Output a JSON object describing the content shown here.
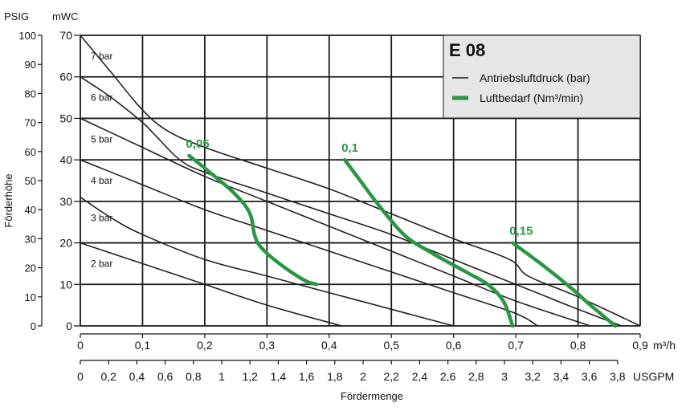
{
  "chart_data": {
    "type": "line",
    "title": "E 08",
    "legend": {
      "placement": "top-right",
      "entries": [
        {
          "label": "Antriebsluftdruck (bar)",
          "color": "#231f20",
          "style": "thin-line"
        },
        {
          "label": "Luftbedarf (Nm³/min)",
          "color": "#2a9646",
          "style": "thick-line"
        }
      ]
    },
    "axes": {
      "mwc": {
        "label": "mWC",
        "ticks": [
          "0",
          "10",
          "20",
          "30",
          "40",
          "50",
          "60",
          "70"
        ],
        "range": [
          0,
          70
        ]
      },
      "psig": {
        "label": "PSIG",
        "ticks": [
          "0",
          "10",
          "20",
          "30",
          "40",
          "50",
          "60",
          "70",
          "80",
          "90",
          "100"
        ],
        "range": [
          0,
          100
        ]
      },
      "ylabel": "Förderhöhe",
      "x_m3h": {
        "label": "m³/h",
        "ticks": [
          "0",
          "0,1",
          "0,2",
          "0,3",
          "0,4",
          "0,5",
          "0,6",
          "0,7",
          "0,8",
          "0,9"
        ],
        "range": [
          0,
          0.9
        ]
      },
      "x_usgpm": {
        "label": "USGPM",
        "ticks": [
          "0",
          "0,2",
          "0,4",
          "0,6",
          "0,8",
          "1",
          "1,2",
          "1,4",
          "1,6",
          "1,8",
          "2",
          "2,2",
          "2,4",
          "2,6",
          "2,8",
          "3",
          "3,2",
          "3,4",
          "3,6",
          "3,8"
        ],
        "range": [
          0,
          3.96
        ]
      },
      "xlabel": "Fördermenge",
      "grid": true
    },
    "pressure_curves": [
      {
        "name": "7 bar",
        "x": [
          0,
          0.05,
          0.1,
          0.14,
          0.2,
          0.3,
          0.4,
          0.5,
          0.6,
          0.69,
          0.72,
          0.8,
          0.9
        ],
        "y": [
          70,
          61,
          52,
          47,
          43,
          38,
          33,
          27,
          21,
          16,
          12,
          7,
          0
        ]
      },
      {
        "name": "6 bar",
        "x": [
          0,
          0.05,
          0.1,
          0.12,
          0.16,
          0.2,
          0.3,
          0.4,
          0.5,
          0.6,
          0.7,
          0.75,
          0.8,
          0.87
        ],
        "y": [
          60,
          55,
          49,
          46,
          40,
          37,
          32,
          27,
          22,
          16,
          10,
          7,
          4,
          0
        ]
      },
      {
        "name": "5 bar",
        "x": [
          0,
          0.1,
          0.2,
          0.3,
          0.4,
          0.5,
          0.6,
          0.7,
          0.82
        ],
        "y": [
          50,
          43,
          36,
          30,
          24,
          18,
          12,
          6,
          0
        ]
      },
      {
        "name": "4 bar",
        "x": [
          0,
          0.1,
          0.2,
          0.3,
          0.4,
          0.5,
          0.6,
          0.7,
          0.735
        ],
        "y": [
          40,
          34,
          28,
          23,
          18,
          13,
          8,
          3,
          0
        ]
      },
      {
        "name": "3 bar",
        "x": [
          0,
          0.05,
          0.1,
          0.2,
          0.3,
          0.4,
          0.5,
          0.6
        ],
        "y": [
          31,
          26,
          22,
          16,
          12,
          8,
          4,
          0
        ]
      },
      {
        "name": "2 bar",
        "x": [
          0,
          0.1,
          0.2,
          0.3,
          0.42
        ],
        "y": [
          20,
          15,
          10,
          5,
          0
        ]
      }
    ],
    "air_consumption_curves": [
      {
        "name": "0,05",
        "x": [
          0.175,
          0.2,
          0.24,
          0.265,
          0.275,
          0.28,
          0.29,
          0.32,
          0.36,
          0.38
        ],
        "y": [
          41,
          38,
          33,
          29,
          26,
          22,
          19,
          15,
          11,
          10
        ]
      },
      {
        "name": "0,1",
        "x": [
          0.425,
          0.45,
          0.48,
          0.52,
          0.56,
          0.62,
          0.655,
          0.68,
          0.695
        ],
        "y": [
          40,
          35,
          29,
          22,
          18,
          13,
          10,
          6,
          0
        ]
      },
      {
        "name": "0,15",
        "x": [
          0.695,
          0.74,
          0.79,
          0.82,
          0.86
        ],
        "y": [
          20,
          15,
          9,
          5,
          0
        ]
      }
    ]
  }
}
